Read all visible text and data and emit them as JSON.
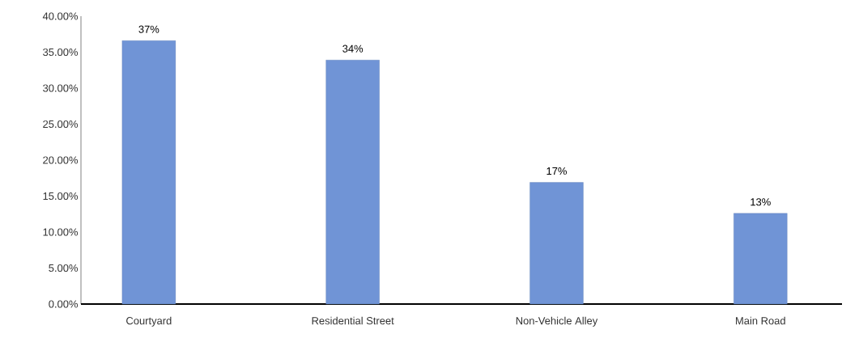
{
  "chart_data": {
    "type": "bar",
    "categories": [
      "Courtyard",
      "Residential Street",
      "Non-Vehicle Alley",
      "Main Road"
    ],
    "values": [
      36.6,
      33.9,
      16.9,
      12.6
    ],
    "value_labels": [
      "37%",
      "34%",
      "17%",
      "13%"
    ],
    "color": "#7094d6",
    "ylim": [
      0,
      40
    ],
    "yticks": [
      {
        "value": 0,
        "label": "0.00%"
      },
      {
        "value": 5,
        "label": "5.00%"
      },
      {
        "value": 10,
        "label": "10.00%"
      },
      {
        "value": 15,
        "label": "15.00%"
      },
      {
        "value": 20,
        "label": "20.00%"
      },
      {
        "value": 25,
        "label": "25.00%"
      },
      {
        "value": 30,
        "label": "30.00%"
      },
      {
        "value": 35,
        "label": "35.00%"
      },
      {
        "value": 40,
        "label": "40.00%"
      }
    ],
    "grid": false
  }
}
